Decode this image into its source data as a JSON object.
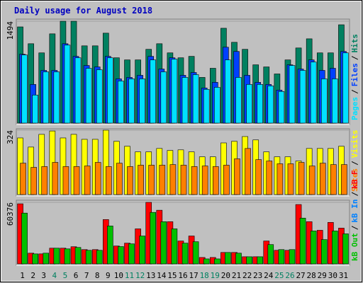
{
  "chart_data": {
    "type": "bar",
    "title": "Daily usage for August 2018",
    "legend_separator": "/",
    "categories": [
      "1",
      "2",
      "3",
      "4",
      "5",
      "6",
      "7",
      "8",
      "9",
      "10",
      "11",
      "12",
      "13",
      "14",
      "15",
      "16",
      "17",
      "18",
      "19",
      "20",
      "21",
      "22",
      "23",
      "24",
      "25",
      "26",
      "27",
      "28",
      "29",
      "30",
      "31"
    ],
    "category_colors": [
      "#000",
      "#000",
      "#000",
      "#008060",
      "#008060",
      "#000",
      "#000",
      "#000",
      "#000",
      "#000",
      "#008060",
      "#008060",
      "#000",
      "#000",
      "#000",
      "#000",
      "#000",
      "#008060",
      "#008060",
      "#000",
      "#000",
      "#000",
      "#000",
      "#000",
      "#008060",
      "#008060",
      "#000",
      "#000",
      "#000",
      "#000",
      "#000"
    ],
    "panels": [
      {
        "ylim": [
          0,
          1494
        ],
        "yticks": [
          1494
        ],
        "series": [
          {
            "name": "Hits",
            "color": "#008060",
            "values": [
              1411,
              1164,
              1030,
              1309,
              1494,
              1494,
              1133,
              1133,
              1319,
              958,
              927,
              927,
              1082,
              1164,
              1030,
              958,
              979,
              670,
              804,
              1391,
              1185,
              1082,
              855,
              824,
              721,
              927,
              1102,
              1236,
              1030,
              1030,
              1442
            ]
          },
          {
            "name": "Files",
            "color": "#0040FF",
            "values": [
              1010,
              567,
              773,
              773,
              1164,
              979,
              845,
              824,
              979,
              649,
              670,
              701,
              979,
              793,
              958,
              701,
              742,
              515,
              598,
              1113,
              1051,
              701,
              598,
              567,
              484,
              855,
              793,
              927,
              773,
              804,
              1051
            ]
          },
          {
            "name": "Pages",
            "color": "#00E0FF",
            "values": [
              999,
              412,
              752,
              752,
              1144,
              958,
              804,
              783,
              958,
              618,
              649,
              649,
              927,
              752,
              938,
              670,
              711,
              495,
              525,
              927,
              670,
              567,
              567,
              546,
              464,
              845,
              773,
              896,
              649,
              649,
              1030
            ]
          }
        ]
      },
      {
        "ylim": [
          0,
          324
        ],
        "yticks": [
          324
        ],
        "series": [
          {
            "name": "Visits",
            "color": "#FFFF00",
            "values": [
              285,
              239,
              303,
              320,
              285,
              303,
              278,
              278,
              324,
              268,
              243,
              215,
              215,
              232,
              222,
              225,
              215,
              190,
              190,
              260,
              268,
              292,
              275,
              215,
              190,
              190,
              169,
              232,
              232,
              232,
              243
            ]
          },
          {
            "name": "Sites",
            "color": "#FF8000",
            "values": [
              158,
              137,
              141,
              162,
              141,
              141,
              144,
              162,
              141,
              158,
              141,
              148,
              148,
              148,
              151,
              148,
              141,
              144,
              141,
              148,
              180,
              232,
              176,
              169,
              155,
              155,
              162,
              144,
              158,
              151,
              151
            ]
          }
        ]
      },
      {
        "ylim": [
          0,
          60376
        ],
        "yticks": [
          60376
        ],
        "series": [
          {
            "name": "kB F",
            "color": "#FF0000",
            "values": [
              58968,
              10530,
              9828,
              15444,
              15444,
              16848,
              14040,
              14040,
              43524,
              17550,
              20358,
              34398,
              60376,
              52650,
              41418,
              22464,
              27378,
              6318,
              6318,
              11232,
              11232,
              7020,
              7020,
              22464,
              13338,
              13338,
              58266,
              41418,
              32994,
              40716,
              35100
            ]
          },
          {
            "name": "kB In",
            "color": "#0080FF",
            "values": [
              0,
              0,
              0,
              0,
              0,
              0,
              0,
              0,
              0,
              0,
              0,
              0,
              0,
              0,
              0,
              0,
              0,
              0,
              0,
              0,
              0,
              0,
              0,
              0,
              0,
              0,
              0,
              0,
              0,
              0,
              0
            ]
          },
          {
            "name": "kB Out",
            "color": "#00C000",
            "values": [
              49842,
              9828,
              10530,
              15444,
              14742,
              16146,
              13338,
              13338,
              37206,
              17000,
              19656,
              27378,
              50544,
              41418,
              34398,
              20358,
              21762,
              4914,
              4914,
              11232,
              10530,
              7020,
              7020,
              18954,
              14040,
              14040,
              44928,
              32292,
              23868,
              32292,
              29484
            ]
          }
        ]
      }
    ]
  }
}
